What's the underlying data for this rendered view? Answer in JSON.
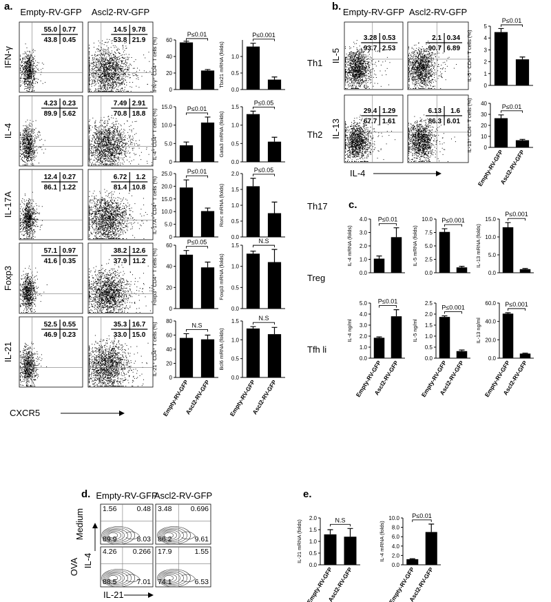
{
  "panels": {
    "a": "a.",
    "b": "b.",
    "c": "c.",
    "d": "d.",
    "e": "e."
  },
  "flow_a": {
    "columns": [
      "Empty-RV-GFP",
      "Ascl2-RV-GFP"
    ],
    "x_label": "CXCR5",
    "rows": [
      {
        "label": "IFN-γ",
        "plots": [
          [
            "55.0",
            "0.77",
            "43.8",
            "0.45"
          ],
          [
            "14.5",
            "9.78",
            "53.8",
            "21.9"
          ]
        ]
      },
      {
        "label": "IL-4",
        "plots": [
          [
            "4.23",
            "0.23",
            "89.9",
            "5.62"
          ],
          [
            "7.49",
            "2.91",
            "70.8",
            "18.8"
          ]
        ]
      },
      {
        "label": "IL-17A",
        "plots": [
          [
            "12.4",
            "0.27",
            "86.1",
            "1.22"
          ],
          [
            "6.72",
            "1.2",
            "81.4",
            "10.8"
          ]
        ]
      },
      {
        "label": "Foxp3",
        "plots": [
          [
            "57.1",
            "0.97",
            "41.6",
            "0.35"
          ],
          [
            "38.2",
            "12.6",
            "37.9",
            "11.2"
          ]
        ]
      },
      {
        "label": "IL-21",
        "plots": [
          [
            "52.5",
            "0.55",
            "46.9",
            "0.23"
          ],
          [
            "35.3",
            "16.7",
            "33.0",
            "15.0"
          ]
        ]
      }
    ]
  },
  "side_labels_a": [
    "Th1",
    "Th2",
    "Th17",
    "Treg",
    "Tfh li"
  ],
  "flow_b": {
    "columns": [
      "Empty-RV-GFP",
      "Ascl2-RV-GFP"
    ],
    "x_label": "IL-4",
    "rows": [
      {
        "label": "IL-5",
        "plots": [
          [
            "3.28",
            "0.53",
            "93.7",
            "2.53"
          ],
          [
            "2.1",
            "0.34",
            "90.7",
            "6.89"
          ]
        ]
      },
      {
        "label": "IL-13",
        "plots": [
          [
            "29.4",
            "1.29",
            "67.7",
            "1.61"
          ],
          [
            "6.13",
            "1.6",
            "86.3",
            "6.01"
          ]
        ]
      }
    ]
  },
  "flow_d": {
    "columns": [
      "Empty-RV-GFP",
      "Ascl2-RV-GFP"
    ],
    "x_label": "IL-21",
    "y_label": "IL-4",
    "rows": [
      {
        "label": "Medium",
        "plots": [
          [
            "1.56",
            "0.48",
            "89.9",
            "8.03"
          ],
          [
            "3.48",
            "0.696",
            "86.2",
            "9.61"
          ]
        ]
      },
      {
        "label": "OVA",
        "plots": [
          [
            "4.26",
            "0.266",
            "88.5",
            "7.01"
          ],
          [
            "17.9",
            "1.55",
            "74.1",
            "6.53"
          ]
        ]
      }
    ]
  },
  "chart_data": [
    {
      "type": "bar",
      "ylabel": "IFN-γ⁺ CD4⁺ T cells (%)",
      "categories": [
        null,
        null
      ],
      "values": [
        57,
        23
      ],
      "errors": [
        1.5,
        1.2
      ],
      "color": "#000000",
      "ylim": [
        0,
        60
      ],
      "yticks": [
        0,
        20,
        40,
        60
      ],
      "significance": "P≤0.01"
    },
    {
      "type": "bar",
      "ylabel": "Tbx21 mRNA (folds)",
      "categories": [
        null,
        null
      ],
      "values": [
        1.3,
        0.3
      ],
      "errors": [
        0.1,
        0.08
      ],
      "color": "#000000",
      "ylim": [
        0,
        1.5
      ],
      "yticks": [
        {
          "value": 0,
          "label": "0.0"
        },
        {
          "value": 0.5,
          "label": "0.5"
        },
        {
          "value": 1,
          "label": "1.0"
        }
      ],
      "significance": "P≤0.001"
    },
    {
      "type": "bar",
      "ylabel": "IL-4⁺ CD4⁺ T cells (%)",
      "categories": [
        null,
        null
      ],
      "values": [
        4.5,
        10.7
      ],
      "errors": [
        0.9,
        1.5
      ],
      "color": "#000000",
      "ylim": [
        0,
        15
      ],
      "yticks": [
        0,
        {
          "value": 5,
          "label": "5.0"
        },
        {
          "value": 10,
          "label": "10.0"
        },
        {
          "value": 15,
          "label": "15.0"
        }
      ],
      "significance": "P≤0.01"
    },
    {
      "type": "bar",
      "ylabel": "Gata3 mRNA (folds)",
      "categories": [
        null,
        null
      ],
      "values": [
        1.3,
        0.55
      ],
      "errors": [
        0.08,
        0.12
      ],
      "color": "#000000",
      "ylim": [
        0,
        1.5
      ],
      "yticks": [
        {
          "value": 0,
          "label": "0.0"
        },
        {
          "value": 0.5,
          "label": "0.5"
        },
        {
          "value": 1,
          "label": "1.0"
        },
        {
          "value": 1.5,
          "label": "1.5"
        }
      ],
      "significance": "P≤0.05"
    },
    {
      "type": "bar",
      "ylabel": "IL-17A⁺ CD4⁺ T cells (%)",
      "categories": [
        null,
        null
      ],
      "values": [
        19.5,
        10.2
      ],
      "errors": [
        3,
        1.2
      ],
      "color": "#000000",
      "ylim": [
        0,
        25
      ],
      "yticks": [
        0,
        {
          "value": 5,
          "label": "5.0"
        },
        {
          "value": 10,
          "label": "10.0"
        },
        {
          "value": 15,
          "label": "15.0"
        },
        {
          "value": 20,
          "label": "20.0"
        },
        {
          "value": 25,
          "label": "25.0"
        }
      ],
      "significance": "P≤0.01"
    },
    {
      "type": "bar",
      "ylabel": "Rorc mRNA (folds)",
      "categories": [
        null,
        null
      ],
      "values": [
        1.6,
        0.75
      ],
      "errors": [
        0.25,
        0.35
      ],
      "color": "#000000",
      "ylim": [
        0,
        2
      ],
      "yticks": [
        {
          "value": 0,
          "label": "0.0"
        },
        {
          "value": 0.5,
          "label": "0.5"
        },
        {
          "value": 1,
          "label": "1.0"
        },
        {
          "value": 1.5,
          "label": "1.5"
        },
        {
          "value": 2,
          "label": "2.0"
        }
      ],
      "significance": "P≤0.05"
    },
    {
      "type": "bar",
      "ylabel": "Foxp3⁺ CD4⁺ T cells (%)",
      "categories": [
        null,
        null
      ],
      "values": [
        51,
        39
      ],
      "errors": [
        4,
        5
      ],
      "color": "#000000",
      "ylim": [
        0,
        60
      ],
      "yticks": [
        0,
        20,
        40,
        60
      ],
      "significance": "P≤0.05"
    },
    {
      "type": "bar",
      "ylabel": "Foxp3 mRNA (folds)",
      "categories": [
        null,
        null
      ],
      "values": [
        1.3,
        1.1
      ],
      "errors": [
        0.06,
        0.3
      ],
      "color": "#000000",
      "ylim": [
        0,
        1.5
      ],
      "yticks": [
        {
          "value": 0,
          "label": "0.0"
        },
        {
          "value": 0.5,
          "label": "0.5"
        },
        {
          "value": 1,
          "label": "1.0"
        },
        {
          "value": 1.5,
          "label": "1.5"
        }
      ],
      "significance": "N.S"
    },
    {
      "type": "bar",
      "ylabel": "IL-21⁺ CD4⁺ T cells (%)",
      "categories": [
        "Empty-RV-GFP",
        "Ascl2-RV-GFP"
      ],
      "values": [
        56,
        54
      ],
      "errors": [
        6,
        6
      ],
      "color": "#000000",
      "ylim": [
        0,
        80
      ],
      "yticks": [
        0,
        20,
        40,
        60,
        80
      ],
      "significance": "N.S"
    },
    {
      "type": "bar",
      "ylabel": "Bcl6 mRNA (folds)",
      "categories": [
        "Empty-RV-GFP",
        "Ascl2-RV-GFP"
      ],
      "values": [
        1.3,
        1.15
      ],
      "errors": [
        0.05,
        0.18
      ],
      "color": "#000000",
      "ylim": [
        0,
        1.5
      ],
      "yticks": [
        {
          "value": 0,
          "label": "0.0"
        },
        {
          "value": 0.5,
          "label": "0.5"
        },
        {
          "value": 1,
          "label": "1.0"
        },
        {
          "value": 1.5,
          "label": "1.5"
        }
      ],
      "significance": "N.S"
    },
    {
      "type": "bar",
      "ylabel": "IL-5⁺ CD4⁺ T cells (%)",
      "categories": [
        null,
        null
      ],
      "values": [
        4.5,
        2.2
      ],
      "errors": [
        0.3,
        0.2
      ],
      "color": "#000000",
      "ylim": [
        0,
        5
      ],
      "yticks": [
        0,
        1,
        2,
        3,
        4,
        5
      ],
      "significance": "P≤0.01"
    },
    {
      "type": "bar",
      "ylabel": "IL-13⁺ CD4⁺ T cells (%)",
      "categories": [
        "Empty-RV-GFP",
        "Ascl2-RV-GFP"
      ],
      "values": [
        26.5,
        6.5
      ],
      "errors": [
        3,
        0.8
      ],
      "color": "#000000",
      "ylim": [
        0,
        40
      ],
      "yticks": [
        0,
        10,
        20,
        30,
        40
      ],
      "significance": "P≤0.01"
    },
    {
      "type": "bar",
      "ylabel": "IL-4 mRNA  (folds)",
      "categories": [
        null,
        null
      ],
      "values": [
        1.05,
        2.65
      ],
      "errors": [
        0.2,
        0.7
      ],
      "color": "#000000",
      "ylim": [
        0,
        4
      ],
      "yticks": [
        {
          "value": 0,
          "label": "0.0"
        },
        {
          "value": 1,
          "label": "1.0"
        },
        {
          "value": 2,
          "label": "2.0"
        },
        {
          "value": 3,
          "label": "3.0"
        },
        {
          "value": 4,
          "label": "4.0"
        }
      ],
      "significance": "P≤0.01"
    },
    {
      "type": "bar",
      "ylabel": "IL-5 mRNA  (folds)",
      "categories": [
        null,
        null
      ],
      "values": [
        7.6,
        1.0
      ],
      "errors": [
        0.6,
        0.2
      ],
      "color": "#000000",
      "ylim": [
        0,
        10
      ],
      "yticks": [
        {
          "value": 0,
          "label": "0.0"
        },
        {
          "value": 2.5,
          "label": "2.5"
        },
        {
          "value": 5,
          "label": "5.0"
        },
        {
          "value": 7.5,
          "label": "7.5"
        },
        {
          "value": 10,
          "label": "10.0"
        }
      ],
      "significance": "P≤0.001"
    },
    {
      "type": "bar",
      "ylabel": "IL-13 mRNA  (folds)",
      "categories": [
        null,
        null
      ],
      "values": [
        12.7,
        1.0
      ],
      "errors": [
        1.3,
        0.2
      ],
      "color": "#000000",
      "ylim": [
        0,
        15
      ],
      "yticks": [
        {
          "value": 0,
          "label": "0.0"
        },
        {
          "value": 5,
          "label": "5.0"
        },
        {
          "value": 10,
          "label": "10.0"
        },
        {
          "value": 15,
          "label": "15.0"
        }
      ],
      "significance": "P≤0.001"
    },
    {
      "type": "bar",
      "ylabel": "IL-4 ng/ml",
      "categories": [
        "Empty-RV-GFP",
        "Ascl2-RV-GFP"
      ],
      "values": [
        1.85,
        3.8
      ],
      "errors": [
        0.08,
        0.6
      ],
      "color": "#000000",
      "ylim": [
        0,
        5
      ],
      "yticks": [
        {
          "value": 0,
          "label": "0.0"
        },
        {
          "value": 1,
          "label": "1.0"
        },
        {
          "value": 2,
          "label": "2.0"
        },
        {
          "value": 3,
          "label": "3.0"
        },
        {
          "value": 4,
          "label": "4.0"
        },
        {
          "value": 5,
          "label": "5.0"
        }
      ],
      "significance": "P≤0.01"
    },
    {
      "type": "bar",
      "ylabel": "IL-5 ng/ml",
      "categories": [
        "Empty-RV-GFP",
        "Ascl2-RV-GFP"
      ],
      "values": [
        1.87,
        0.32
      ],
      "errors": [
        0.05,
        0.05
      ],
      "color": "#000000",
      "ylim": [
        0,
        2.5
      ],
      "yticks": [
        {
          "value": 0,
          "label": "0.0"
        },
        {
          "value": 0.5,
          "label": "0.5"
        },
        {
          "value": 1,
          "label": "1.0"
        },
        {
          "value": 1.5,
          "label": "1.5"
        },
        {
          "value": 2,
          "label": "2.0"
        },
        {
          "value": 2.5,
          "label": "2.5"
        }
      ],
      "significance": "P≤0.001"
    },
    {
      "type": "bar",
      "ylabel": "IL-13 ng/ml",
      "categories": [
        "Empty-RV-GFP",
        "Ascl2-RV-GFP"
      ],
      "values": [
        48.5,
        5
      ],
      "errors": [
        1,
        0.5
      ],
      "color": "#000000",
      "ylim": [
        0,
        60
      ],
      "yticks": [
        {
          "value": 0,
          "label": "0.0"
        },
        {
          "value": 20,
          "label": "20.0"
        },
        {
          "value": 40,
          "label": "40.0"
        },
        {
          "value": 60,
          "label": "60.0"
        }
      ],
      "significance": "P≤0.001"
    },
    {
      "type": "bar",
      "ylabel": "IL-21 mRNA  (folds)",
      "categories": [
        "Empty-RV-GFP",
        "Ascl2-RV-GFP"
      ],
      "values": [
        1.3,
        1.2
      ],
      "errors": [
        0.2,
        0.35
      ],
      "color": "#000000",
      "ylim": [
        0,
        2
      ],
      "yticks": [
        {
          "value": 0,
          "label": "0.0"
        },
        {
          "value": 0.5,
          "label": "0.5"
        },
        {
          "value": 1,
          "label": "1.0"
        },
        {
          "value": 1.5,
          "label": "1.5"
        },
        {
          "value": 2,
          "label": "2.0"
        }
      ],
      "significance": "N.S"
    },
    {
      "type": "bar",
      "ylabel": "IL-4 mRNA  (folds)",
      "categories": [
        "Empty-RV-GFP",
        "Ascl2-RV-GFP"
      ],
      "values": [
        1.2,
        7.0
      ],
      "errors": [
        0.1,
        1.7
      ],
      "color": "#000000",
      "ylim": [
        0,
        10
      ],
      "yticks": [
        {
          "value": 0,
          "label": "0.0"
        },
        {
          "value": 2,
          "label": "2.0"
        },
        {
          "value": 4,
          "label": "4.0"
        },
        {
          "value": 6,
          "label": "6.0"
        },
        {
          "value": 8,
          "label": "8.0"
        },
        {
          "value": 10,
          "label": "10.0"
        }
      ],
      "significance": "P≤0.01"
    }
  ]
}
